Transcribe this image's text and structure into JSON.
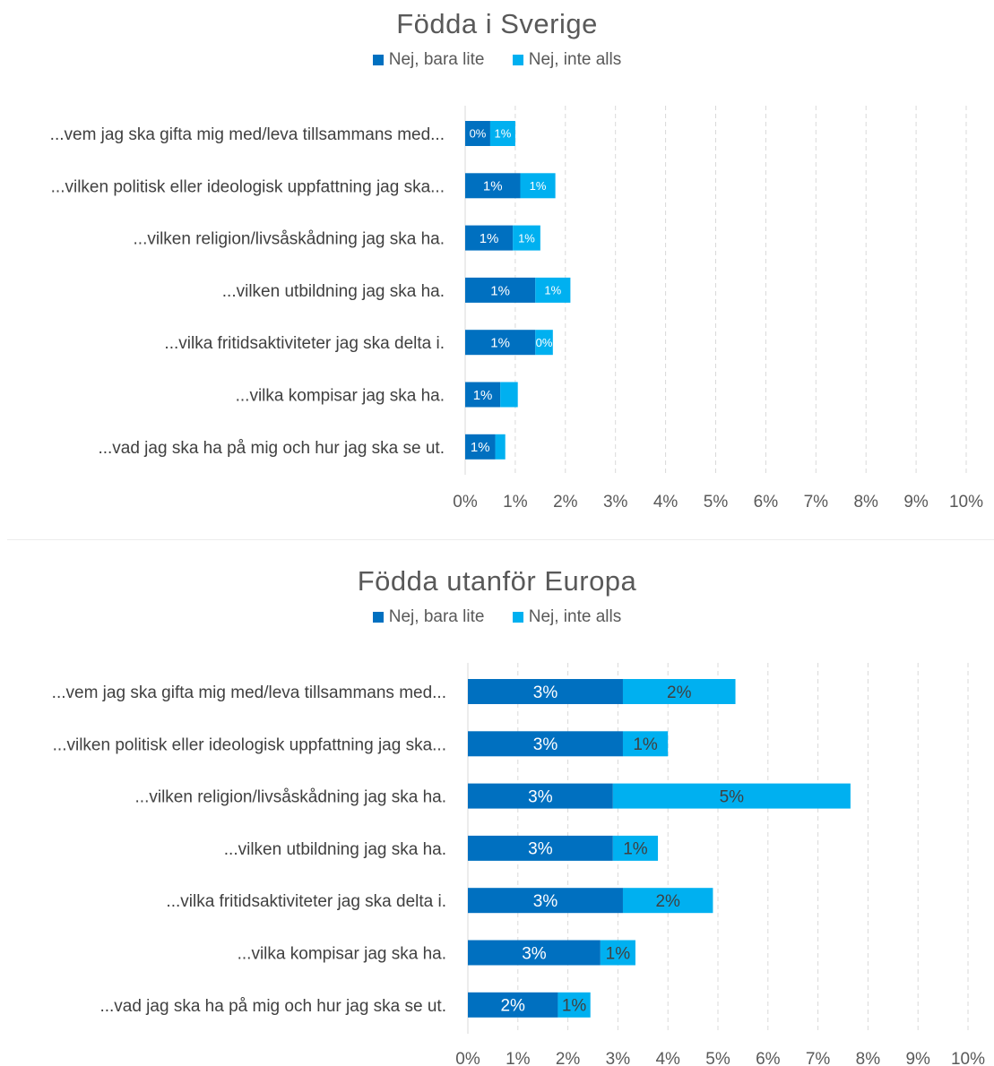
{
  "chart_data": [
    {
      "type": "bar",
      "orientation": "horizontal",
      "stacked": true,
      "title": "Födda i Sverige",
      "categories": [
        "...vem jag ska gifta mig med/leva tillsammans med...",
        "...vilken politisk eller ideologisk uppfattning jag ska...",
        "...vilken religion/livsåskådning jag ska ha.",
        "...vilken utbildning jag ska ha.",
        "...vilka fritidsaktiviteter jag ska delta i.",
        "...vilka kompisar jag ska ha.",
        "...vad jag ska ha på mig och hur jag ska se ut."
      ],
      "series": [
        {
          "name": "Nej, bara lite",
          "color": "#0070C0",
          "values": [
            0.5,
            1.1,
            0.95,
            1.4,
            1.4,
            0.7,
            0.6
          ],
          "labels": [
            "0%",
            "1%",
            "1%",
            "1%",
            "1%",
            "1%",
            "1%"
          ]
        },
        {
          "name": "Nej, inte alls",
          "color": "#00B0F0",
          "values": [
            0.5,
            0.7,
            0.55,
            0.7,
            0.35,
            0.35,
            0.2
          ],
          "labels": [
            "1%",
            "1%",
            "1%",
            "1%",
            "0%",
            "",
            ""
          ]
        }
      ],
      "xlim": [
        0,
        10
      ],
      "xticks": [
        "0%",
        "1%",
        "2%",
        "3%",
        "4%",
        "5%",
        "6%",
        "7%",
        "8%",
        "9%",
        "10%"
      ],
      "grid": true,
      "legend_position": "top"
    },
    {
      "type": "bar",
      "orientation": "horizontal",
      "stacked": true,
      "title": "Födda utanför Europa",
      "categories": [
        "...vem jag ska gifta mig med/leva tillsammans med...",
        "...vilken politisk eller ideologisk uppfattning jag ska...",
        "...vilken religion/livsåskådning jag ska ha.",
        "...vilken utbildning jag ska ha.",
        "...vilka fritidsaktiviteter jag ska delta i.",
        "...vilka kompisar jag ska ha.",
        "...vad jag ska ha på mig och hur jag ska se ut."
      ],
      "series": [
        {
          "name": "Nej, bara lite",
          "color": "#0070C0",
          "values": [
            3.1,
            3.1,
            2.9,
            2.9,
            3.1,
            2.65,
            1.8
          ],
          "labels": [
            "3%",
            "3%",
            "3%",
            "3%",
            "3%",
            "3%",
            "2%"
          ]
        },
        {
          "name": "Nej, inte alls",
          "color": "#00B0F0",
          "values": [
            2.25,
            0.9,
            4.75,
            0.9,
            1.8,
            0.7,
            0.65
          ],
          "labels": [
            "2%",
            "1%",
            "5%",
            "1%",
            "2%",
            "1%",
            "1%"
          ]
        }
      ],
      "xlim": [
        0,
        10
      ],
      "xticks": [
        "0%",
        "1%",
        "2%",
        "3%",
        "4%",
        "5%",
        "6%",
        "7%",
        "8%",
        "9%",
        "10%"
      ],
      "grid": true,
      "legend_position": "top"
    }
  ]
}
